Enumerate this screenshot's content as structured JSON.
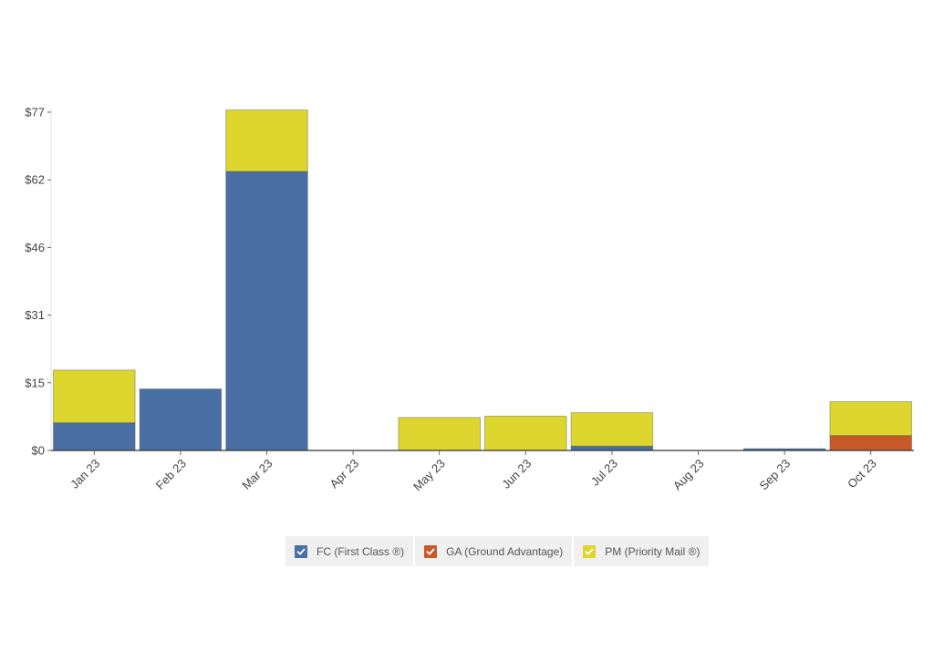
{
  "chart_data": {
    "type": "bar",
    "stacked": true,
    "categories": [
      "Jan 23",
      "Feb 23",
      "Mar 23",
      "Apr 23",
      "May 23",
      "Jun 23",
      "Jul 23",
      "Aug 23",
      "Sep 23",
      "Oct 23"
    ],
    "series": [
      {
        "name": "FC (First Class ®)",
        "color": "#4a6fa5",
        "values": [
          6.3,
          14,
          63.5,
          0,
          0,
          0,
          1,
          0,
          0.4,
          0
        ]
      },
      {
        "name": "GA (Ground Advantage)",
        "color": "#c85a2a",
        "values": [
          0,
          0,
          0,
          0,
          0,
          0,
          0,
          0,
          0,
          3.4
        ]
      },
      {
        "name": "PM (Priority Mail ®)",
        "color": "#dcd62e",
        "values": [
          12,
          0,
          14,
          0,
          7.5,
          7.8,
          7.6,
          0,
          0,
          7.7
        ]
      }
    ],
    "y_ticks": [
      "$0",
      "$15",
      "$31",
      "$46",
      "$62",
      "$77"
    ],
    "y_tick_values": [
      0,
      15.4,
      30.8,
      46.2,
      61.6,
      77
    ],
    "ylim": [
      0,
      77
    ],
    "legend_position": "bottom-center",
    "grid": false
  },
  "legend": {
    "items": [
      {
        "label": "FC (First Class ®)",
        "color": "#4a6fa5",
        "checked": true
      },
      {
        "label": "GA (Ground Advantage)",
        "color": "#c85a2a",
        "checked": true
      },
      {
        "label": "PM (Priority Mail ®)",
        "color": "#dcd62e",
        "checked": true
      }
    ]
  }
}
